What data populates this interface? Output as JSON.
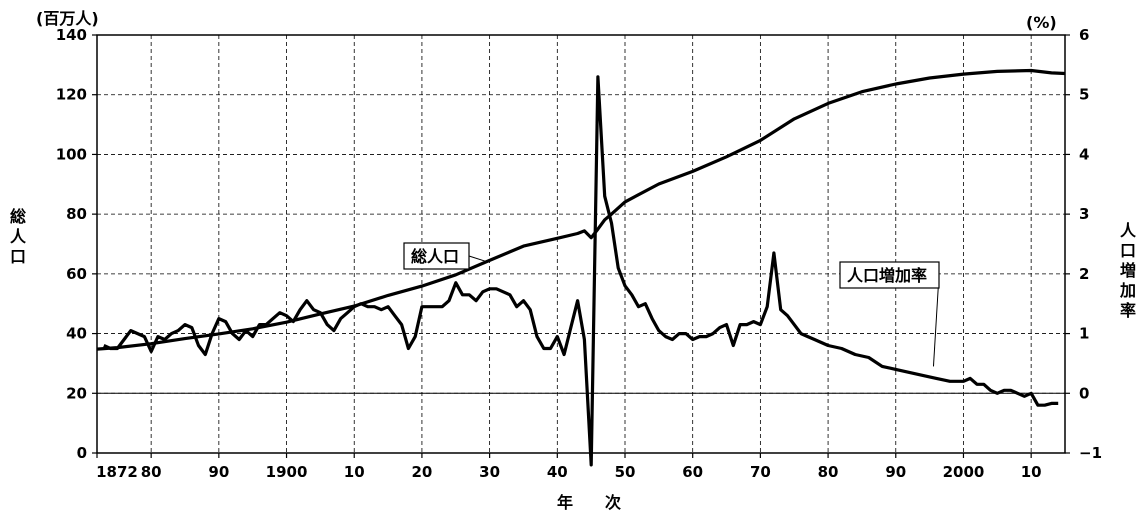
{
  "chart_data": {
    "type": "line",
    "title": "",
    "y_left": {
      "unit_label": "(百万人)",
      "axis_title": "総人口",
      "ticks": [
        0,
        20,
        40,
        60,
        80,
        100,
        120,
        140
      ],
      "ylim": [
        0,
        140
      ]
    },
    "y_right": {
      "unit_label": "(%)",
      "axis_title": "人口増加率",
      "ticks": [
        -1,
        0,
        1,
        2,
        3,
        4,
        5,
        6
      ],
      "ylim": [
        -1,
        6
      ]
    },
    "x_axis": {
      "title": "年　　次",
      "range": [
        1872,
        2015
      ],
      "ticks": [
        {
          "year": 1872,
          "label": "1872"
        },
        {
          "year": 1880,
          "label": "80"
        },
        {
          "year": 1890,
          "label": "90"
        },
        {
          "year": 1900,
          "label": "1900"
        },
        {
          "year": 1910,
          "label": "10"
        },
        {
          "year": 1920,
          "label": "20"
        },
        {
          "year": 1930,
          "label": "30"
        },
        {
          "year": 1940,
          "label": "40"
        },
        {
          "year": 1950,
          "label": "50"
        },
        {
          "year": 1960,
          "label": "60"
        },
        {
          "year": 1970,
          "label": "70"
        },
        {
          "year": 1980,
          "label": "80"
        },
        {
          "year": 1990,
          "label": "90"
        },
        {
          "year": 2000,
          "label": "2000"
        },
        {
          "year": 2010,
          "label": "10"
        }
      ]
    },
    "grid": true,
    "series": [
      {
        "name": "総人口",
        "axis": "left",
        "points": [
          [
            1872,
            34.8
          ],
          [
            1875,
            35.3
          ],
          [
            1880,
            36.6
          ],
          [
            1885,
            38.3
          ],
          [
            1890,
            39.9
          ],
          [
            1895,
            41.6
          ],
          [
            1900,
            43.8
          ],
          [
            1905,
            46.6
          ],
          [
            1910,
            49.2
          ],
          [
            1915,
            52.8
          ],
          [
            1920,
            55.9
          ],
          [
            1925,
            59.7
          ],
          [
            1930,
            64.5
          ],
          [
            1935,
            69.3
          ],
          [
            1940,
            71.9
          ],
          [
            1943,
            73.5
          ],
          [
            1944,
            74.4
          ],
          [
            1945,
            72.1
          ],
          [
            1946,
            75.0
          ],
          [
            1947,
            78.1
          ],
          [
            1948,
            80.0
          ],
          [
            1950,
            84.1
          ],
          [
            1955,
            90.1
          ],
          [
            1960,
            94.3
          ],
          [
            1965,
            99.2
          ],
          [
            1970,
            104.7
          ],
          [
            1975,
            111.9
          ],
          [
            1980,
            117.1
          ],
          [
            1985,
            121.0
          ],
          [
            1990,
            123.6
          ],
          [
            1995,
            125.6
          ],
          [
            2000,
            126.9
          ],
          [
            2005,
            127.8
          ],
          [
            2010,
            128.1
          ],
          [
            2013,
            127.3
          ],
          [
            2015,
            127.1
          ]
        ]
      },
      {
        "name": "人口増加率",
        "axis": "right",
        "points": [
          [
            1873,
            0.8
          ],
          [
            1874,
            0.75
          ],
          [
            1875,
            0.75
          ],
          [
            1876,
            0.9
          ],
          [
            1877,
            1.05
          ],
          [
            1878,
            1.0
          ],
          [
            1879,
            0.95
          ],
          [
            1880,
            0.7
          ],
          [
            1881,
            0.95
          ],
          [
            1882,
            0.9
          ],
          [
            1883,
            1.0
          ],
          [
            1884,
            1.05
          ],
          [
            1885,
            1.15
          ],
          [
            1886,
            1.1
          ],
          [
            1887,
            0.8
          ],
          [
            1888,
            0.65
          ],
          [
            1889,
            1.0
          ],
          [
            1890,
            1.25
          ],
          [
            1891,
            1.2
          ],
          [
            1892,
            1.0
          ],
          [
            1893,
            0.9
          ],
          [
            1894,
            1.05
          ],
          [
            1895,
            0.95
          ],
          [
            1896,
            1.15
          ],
          [
            1897,
            1.15
          ],
          [
            1898,
            1.25
          ],
          [
            1899,
            1.35
          ],
          [
            1900,
            1.3
          ],
          [
            1901,
            1.2
          ],
          [
            1902,
            1.4
          ],
          [
            1903,
            1.55
          ],
          [
            1904,
            1.4
          ],
          [
            1905,
            1.35
          ],
          [
            1906,
            1.15
          ],
          [
            1907,
            1.05
          ],
          [
            1908,
            1.25
          ],
          [
            1909,
            1.35
          ],
          [
            1910,
            1.45
          ],
          [
            1911,
            1.5
          ],
          [
            1912,
            1.45
          ],
          [
            1913,
            1.45
          ],
          [
            1914,
            1.4
          ],
          [
            1915,
            1.45
          ],
          [
            1916,
            1.3
          ],
          [
            1917,
            1.15
          ],
          [
            1918,
            0.75
          ],
          [
            1919,
            0.95
          ],
          [
            1920,
            1.45
          ],
          [
            1921,
            1.45
          ],
          [
            1922,
            1.45
          ],
          [
            1923,
            1.45
          ],
          [
            1924,
            1.55
          ],
          [
            1925,
            1.85
          ],
          [
            1926,
            1.65
          ],
          [
            1927,
            1.65
          ],
          [
            1928,
            1.55
          ],
          [
            1929,
            1.7
          ],
          [
            1930,
            1.75
          ],
          [
            1931,
            1.75
          ],
          [
            1932,
            1.7
          ],
          [
            1933,
            1.65
          ],
          [
            1934,
            1.45
          ],
          [
            1935,
            1.55
          ],
          [
            1936,
            1.4
          ],
          [
            1937,
            0.95
          ],
          [
            1938,
            0.75
          ],
          [
            1939,
            0.75
          ],
          [
            1940,
            0.95
          ],
          [
            1941,
            0.65
          ],
          [
            1942,
            1.1
          ],
          [
            1943,
            1.55
          ],
          [
            1944,
            0.9
          ],
          [
            1945,
            -1.2
          ],
          [
            1946,
            5.3
          ],
          [
            1947,
            3.3
          ],
          [
            1948,
            2.85
          ],
          [
            1949,
            2.1
          ],
          [
            1950,
            1.8
          ],
          [
            1951,
            1.65
          ],
          [
            1952,
            1.45
          ],
          [
            1953,
            1.5
          ],
          [
            1954,
            1.25
          ],
          [
            1955,
            1.05
          ],
          [
            1956,
            0.95
          ],
          [
            1957,
            0.9
          ],
          [
            1958,
            1.0
          ],
          [
            1959,
            1.0
          ],
          [
            1960,
            0.9
          ],
          [
            1961,
            0.95
          ],
          [
            1962,
            0.95
          ],
          [
            1963,
            1.0
          ],
          [
            1964,
            1.1
          ],
          [
            1965,
            1.15
          ],
          [
            1966,
            0.8
          ],
          [
            1967,
            1.15
          ],
          [
            1968,
            1.15
          ],
          [
            1969,
            1.2
          ],
          [
            1970,
            1.15
          ],
          [
            1971,
            1.45
          ],
          [
            1972,
            2.35
          ],
          [
            1973,
            1.4
          ],
          [
            1974,
            1.3
          ],
          [
            1975,
            1.15
          ],
          [
            1976,
            1.0
          ],
          [
            1977,
            0.95
          ],
          [
            1978,
            0.9
          ],
          [
            1979,
            0.85
          ],
          [
            1980,
            0.8
          ],
          [
            1982,
            0.75
          ],
          [
            1984,
            0.65
          ],
          [
            1986,
            0.6
          ],
          [
            1988,
            0.45
          ],
          [
            1990,
            0.4
          ],
          [
            1992,
            0.35
          ],
          [
            1994,
            0.3
          ],
          [
            1996,
            0.25
          ],
          [
            1998,
            0.2
          ],
          [
            2000,
            0.2
          ],
          [
            2001,
            0.25
          ],
          [
            2002,
            0.15
          ],
          [
            2003,
            0.15
          ],
          [
            2004,
            0.05
          ],
          [
            2005,
            0.0
          ],
          [
            2006,
            0.05
          ],
          [
            2007,
            0.05
          ],
          [
            2008,
            0.0
          ],
          [
            2009,
            -0.05
          ],
          [
            2010,
            0.0
          ],
          [
            2011,
            -0.2
          ],
          [
            2012,
            -0.2
          ],
          [
            2013,
            -0.17
          ],
          [
            2014,
            -0.17
          ]
        ]
      }
    ],
    "annotations": [
      {
        "text": "総人口",
        "series": "総人口",
        "anchor_year": 1930,
        "label_position": "above-left"
      },
      {
        "text": "人口増加率",
        "series": "人口増加率",
        "anchor_year": 2000,
        "label_position": "above-left"
      }
    ]
  }
}
